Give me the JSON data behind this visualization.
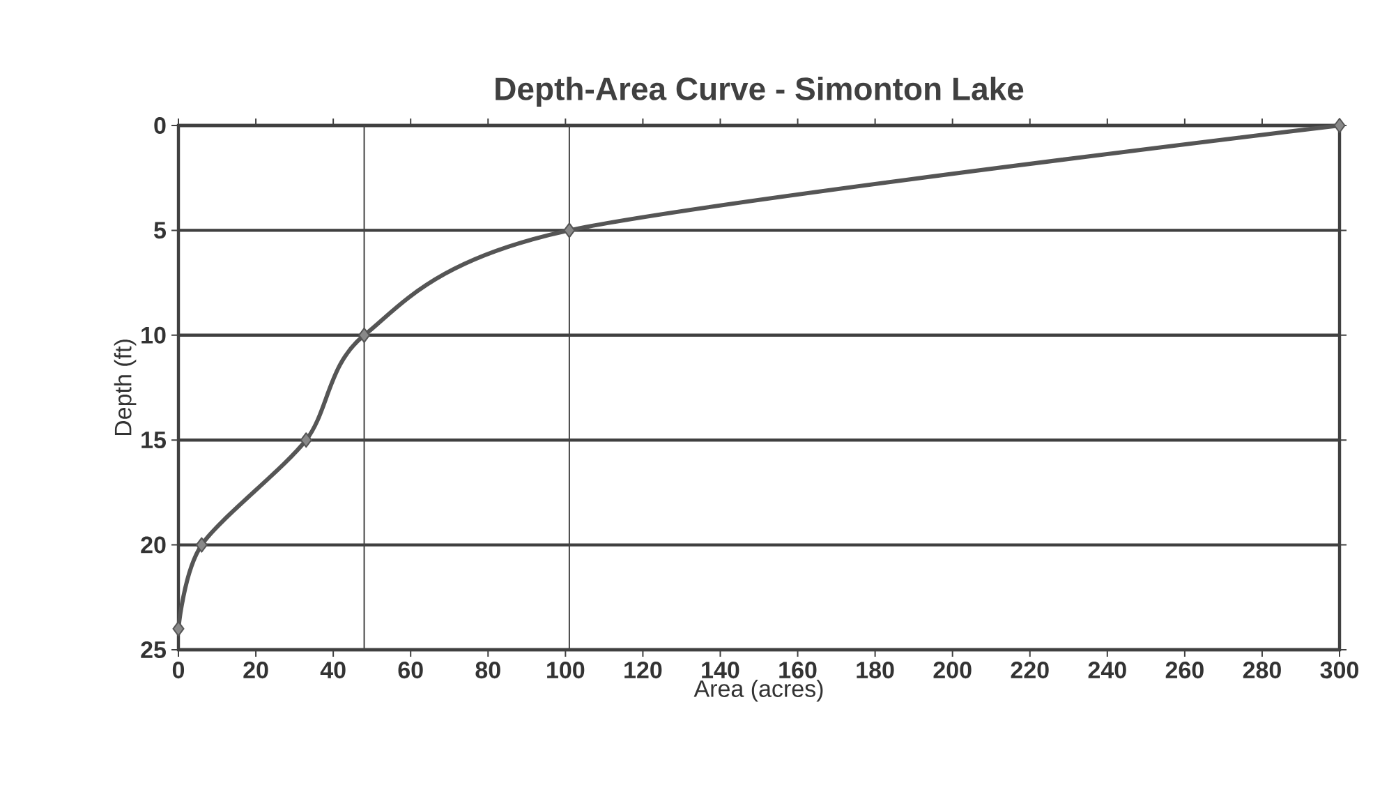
{
  "chart_data": {
    "type": "line",
    "title": "Depth-Area Curve - Simonton Lake",
    "xlabel": "Area (acres)",
    "ylabel": "Depth (ft)",
    "x": [
      300,
      101,
      48,
      33,
      6,
      0
    ],
    "series": [
      {
        "color": "#555555",
        "values": [
          0,
          5,
          10,
          15,
          20,
          24
        ]
      }
    ],
    "xlim": [
      0,
      300
    ],
    "xticks": [
      0,
      20,
      40,
      60,
      80,
      100,
      120,
      140,
      160,
      180,
      200,
      220,
      240,
      260,
      280,
      300
    ],
    "ylim": [
      25,
      0
    ],
    "yticks": [
      0,
      5,
      10,
      15,
      20,
      25
    ],
    "grid": "y",
    "marker": "diamond",
    "line_style": "solid",
    "ref_lines": [
      {
        "axis": "x",
        "value": 48,
        "color": "#444444"
      },
      {
        "axis": "x",
        "value": 101,
        "color": "#444444"
      }
    ]
  }
}
